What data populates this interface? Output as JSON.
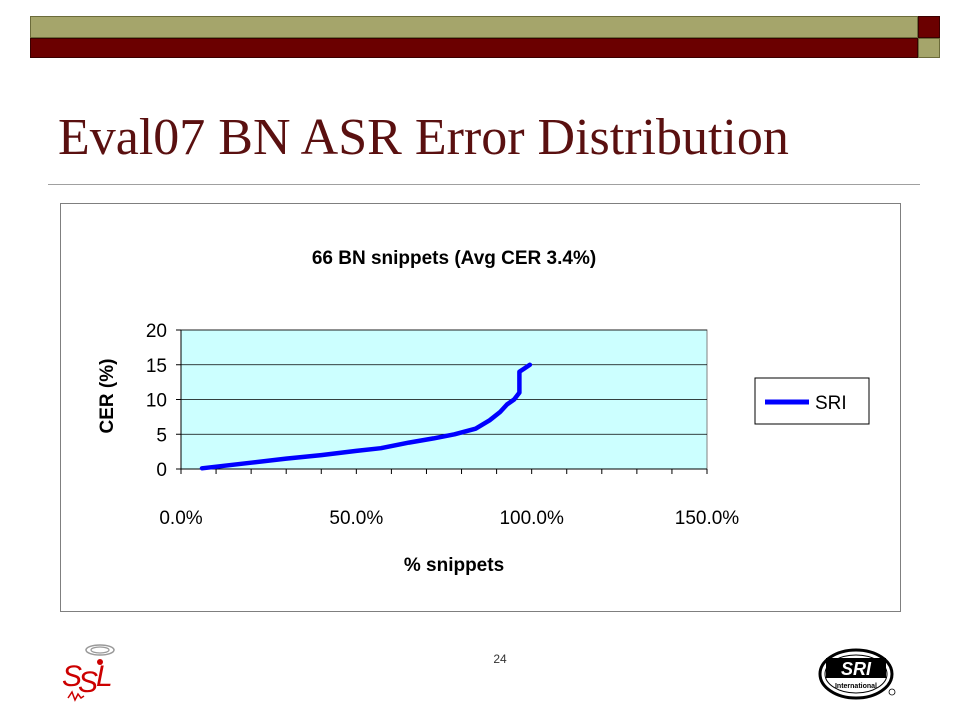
{
  "slide": {
    "title": "Eval07 BN ASR Error Distribution",
    "page_number": "24",
    "logos": {
      "left": {
        "name": "ssl-logo",
        "text": "SSL"
      },
      "right": {
        "name": "sri-international-logo",
        "text": "SRI International"
      }
    },
    "colors": {
      "title": "#5a1010",
      "bar_olive": "#a5a56b",
      "bar_red": "#6b0000"
    }
  },
  "chart_data": {
    "type": "line",
    "title": "66 BN snippets (Avg CER 3.4%)",
    "xlabel": "% snippets",
    "ylabel": "CER (%)",
    "xlim": [
      0,
      150
    ],
    "ylim": [
      0,
      20
    ],
    "x_ticks": [
      "0.0%",
      "50.0%",
      "100.0%",
      "150.0%"
    ],
    "y_ticks": [
      "0",
      "5",
      "10",
      "15",
      "20"
    ],
    "grid": true,
    "plot_background": "#ccffff",
    "legend_position": "right",
    "series": [
      {
        "name": "SRI",
        "color": "#0000ff",
        "x": [
          6,
          20,
          30,
          40,
          50,
          57,
          65,
          72,
          78,
          84,
          88,
          91,
          93,
          95,
          96.5,
          96.5,
          98,
          99.5
        ],
        "y": [
          0.1,
          0.9,
          1.5,
          2.0,
          2.6,
          3.0,
          3.8,
          4.4,
          5.0,
          5.8,
          7.0,
          8.2,
          9.3,
          10.0,
          11.0,
          14.0,
          14.5,
          15.0
        ]
      }
    ]
  }
}
